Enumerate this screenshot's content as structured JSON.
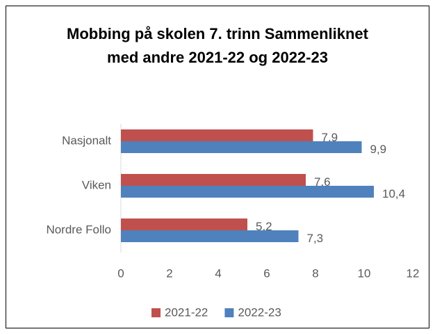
{
  "chart_data": {
    "type": "hbar",
    "title": "Mobbing på skolen 7. trinn Sammenliknet med andre 2021-22 og 2022-23",
    "categories": [
      "Nasjonalt",
      "Viken",
      "Nordre Follo"
    ],
    "series": [
      {
        "name": "2021-22",
        "color": "#c0504d",
        "values": [
          7.9,
          7.6,
          5.2
        ],
        "value_labels": [
          "7,9",
          "7,6",
          "5,2"
        ]
      },
      {
        "name": "2022-23",
        "color": "#4f81bd",
        "values": [
          9.9,
          10.4,
          7.3
        ],
        "value_labels": [
          "9,9",
          "10,4",
          "7,3"
        ]
      }
    ],
    "xlim": [
      0,
      12
    ],
    "xticks": [
      0,
      2,
      4,
      6,
      8,
      10,
      12
    ],
    "grid": false,
    "legend": "bottom"
  }
}
